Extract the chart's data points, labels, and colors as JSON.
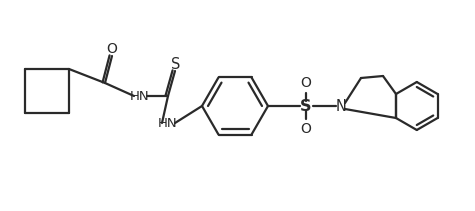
{
  "background_color": "#ffffff",
  "line_color": "#2a2a2a",
  "line_width": 1.6,
  "figsize": [
    4.75,
    2.11
  ],
  "dpi": 100,
  "xlim": [
    0,
    475
  ],
  "ylim": [
    0,
    211
  ]
}
